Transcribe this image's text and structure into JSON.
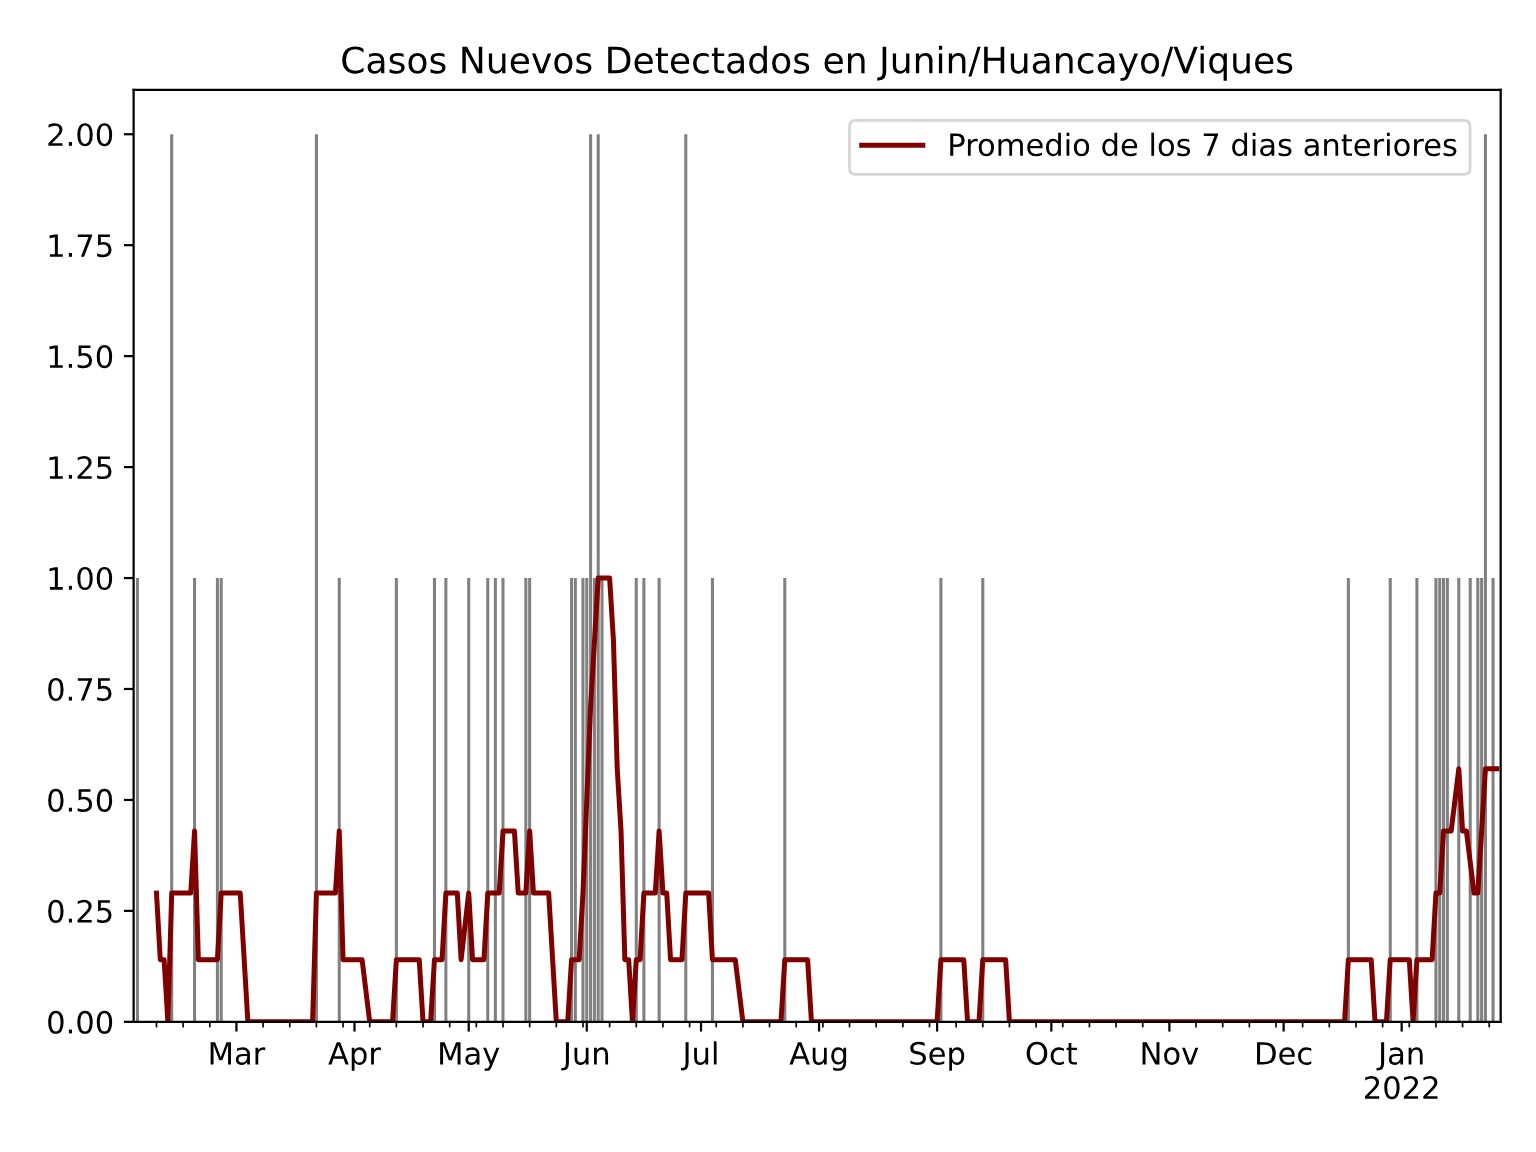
{
  "chart_data": {
    "type": "bar",
    "title": "Casos Nuevos Detectados en Junin/Huancayo/Viques",
    "xlim": [
      "2021-02-02",
      "2022-01-27"
    ],
    "xticks": [
      {
        "value": "2021-03-01",
        "label": "Mar"
      },
      {
        "value": "2021-04-01",
        "label": "Apr"
      },
      {
        "value": "2021-05-01",
        "label": "May"
      },
      {
        "value": "2021-06-01",
        "label": "Jun"
      },
      {
        "value": "2021-07-01",
        "label": "Jul"
      },
      {
        "value": "2021-08-01",
        "label": "Aug"
      },
      {
        "value": "2021-09-01",
        "label": "Sep"
      },
      {
        "value": "2021-10-01",
        "label": "Oct"
      },
      {
        "value": "2021-11-01",
        "label": "Nov"
      },
      {
        "value": "2021-12-01",
        "label": "Dec"
      },
      {
        "value": "2022-01-01",
        "label": "Jan\n2022"
      }
    ],
    "ylim": [
      0,
      2.1
    ],
    "yticks": [
      {
        "value": 0,
        "label": "0.00"
      },
      {
        "value": 0.25,
        "label": "0.25"
      },
      {
        "value": 0.5,
        "label": "0.50"
      },
      {
        "value": 0.75,
        "label": "0.75"
      },
      {
        "value": 1,
        "label": "1.00"
      },
      {
        "value": 1.25,
        "label": "1.25"
      },
      {
        "value": 1.5,
        "label": "1.50"
      },
      {
        "value": 1.75,
        "label": "1.75"
      },
      {
        "value": 2,
        "label": "2.00"
      }
    ],
    "grid": false,
    "legend": "top right",
    "series": [
      {
        "color": "#808080",
        "x": [
          "2021-02-03",
          "2021-02-12",
          "2021-02-18",
          "2021-02-24",
          "2021-02-25",
          "2021-03-22",
          "2021-03-28",
          "2021-04-12",
          "2021-04-22",
          "2021-04-25",
          "2021-05-01",
          "2021-05-06",
          "2021-05-08",
          "2021-05-10",
          "2021-05-16",
          "2021-05-17",
          "2021-05-28",
          "2021-05-29",
          "2021-05-31",
          "2021-06-01",
          "2021-06-02",
          "2021-06-03",
          "2021-06-04",
          "2021-06-05",
          "2021-06-14",
          "2021-06-16",
          "2021-06-20",
          "2021-06-27",
          "2021-07-04",
          "2021-07-23",
          "2021-09-02",
          "2021-09-13",
          "2021-12-18",
          "2021-12-29",
          "2022-01-05",
          "2022-01-10",
          "2022-01-11",
          "2022-01-12",
          "2022-01-13",
          "2022-01-16",
          "2022-01-19",
          "2022-01-21",
          "2022-01-22",
          "2022-01-23",
          "2022-01-25"
        ],
        "values": [
          1,
          2,
          1,
          1,
          1,
          2,
          1,
          1,
          1,
          1,
          1,
          1,
          1,
          1,
          1,
          1,
          1,
          1,
          1,
          1,
          2,
          1,
          2,
          1,
          1,
          1,
          1,
          2,
          1,
          1,
          1,
          1,
          1,
          1,
          1,
          1,
          1,
          1,
          1,
          1,
          1,
          1,
          1,
          2,
          1
        ]
      },
      {
        "type": "line",
        "name": "Promedio de los 7 dias anteriores",
        "color": "#800000",
        "x": [
          "2021-02-08",
          "2021-02-09",
          "2021-02-10",
          "2021-02-11",
          "2021-02-12",
          "2021-02-17",
          "2021-02-18",
          "2021-02-19",
          "2021-02-24",
          "2021-02-25",
          "2021-03-02",
          "2021-03-04",
          "2021-03-21",
          "2021-03-22",
          "2021-03-27",
          "2021-03-28",
          "2021-03-29",
          "2021-04-03",
          "2021-04-05",
          "2021-04-11",
          "2021-04-12",
          "2021-04-18",
          "2021-04-19",
          "2021-04-21",
          "2021-04-22",
          "2021-04-24",
          "2021-04-25",
          "2021-04-28",
          "2021-04-29",
          "2021-05-01",
          "2021-05-02",
          "2021-05-05",
          "2021-05-06",
          "2021-05-09",
          "2021-05-10",
          "2021-05-13",
          "2021-05-14",
          "2021-05-16",
          "2021-05-17",
          "2021-05-18",
          "2021-05-22",
          "2021-05-24",
          "2021-05-27",
          "2021-05-28",
          "2021-05-30",
          "2021-05-31",
          "2021-06-02",
          "2021-06-04",
          "2021-06-07",
          "2021-06-08",
          "2021-06-09",
          "2021-06-10",
          "2021-06-11",
          "2021-06-12",
          "2021-06-13",
          "2021-06-14",
          "2021-06-15",
          "2021-06-16",
          "2021-06-19",
          "2021-06-20",
          "2021-06-21",
          "2021-06-22",
          "2021-06-23",
          "2021-06-26",
          "2021-06-27",
          "2021-07-03",
          "2021-07-04",
          "2021-07-10",
          "2021-07-12",
          "2021-07-22",
          "2021-07-23",
          "2021-07-29",
          "2021-07-30",
          "2021-09-01",
          "2021-09-02",
          "2021-09-08",
          "2021-09-09",
          "2021-09-12",
          "2021-09-13",
          "2021-09-19",
          "2021-09-20",
          "2021-12-17",
          "2021-12-18",
          "2021-12-24",
          "2021-12-25",
          "2021-12-28",
          "2021-12-29",
          "2022-01-03",
          "2022-01-04",
          "2022-01-05",
          "2022-01-09",
          "2022-01-10",
          "2022-01-11",
          "2022-01-12",
          "2022-01-14",
          "2022-01-16",
          "2022-01-17",
          "2022-01-18",
          "2022-01-20",
          "2022-01-21",
          "2022-01-23",
          "2022-01-26"
        ],
        "values": [
          0.29,
          0.14,
          0.14,
          0,
          0.29,
          0.29,
          0.43,
          0.14,
          0.14,
          0.29,
          0.29,
          0,
          0,
          0.29,
          0.29,
          0.43,
          0.14,
          0.14,
          0,
          0,
          0.14,
          0.14,
          0,
          0,
          0.14,
          0.14,
          0.29,
          0.29,
          0.14,
          0.29,
          0.14,
          0.14,
          0.29,
          0.29,
          0.43,
          0.43,
          0.29,
          0.29,
          0.43,
          0.29,
          0.29,
          0,
          0,
          0.14,
          0.14,
          0.29,
          0.71,
          1.0,
          1.0,
          0.86,
          0.57,
          0.43,
          0.14,
          0.14,
          0,
          0.14,
          0.14,
          0.29,
          0.29,
          0.43,
          0.29,
          0.29,
          0.14,
          0.14,
          0.29,
          0.29,
          0.14,
          0.14,
          0,
          0,
          0.14,
          0.14,
          0,
          0,
          0.14,
          0.14,
          0,
          0,
          0.14,
          0.14,
          0,
          0,
          0.14,
          0.14,
          0,
          0,
          0.14,
          0.14,
          0,
          0.14,
          0.14,
          0.29,
          0.29,
          0.43,
          0.43,
          0.57,
          0.43,
          0.43,
          0.29,
          0.29,
          0.57,
          0.57
        ]
      }
    ]
  }
}
